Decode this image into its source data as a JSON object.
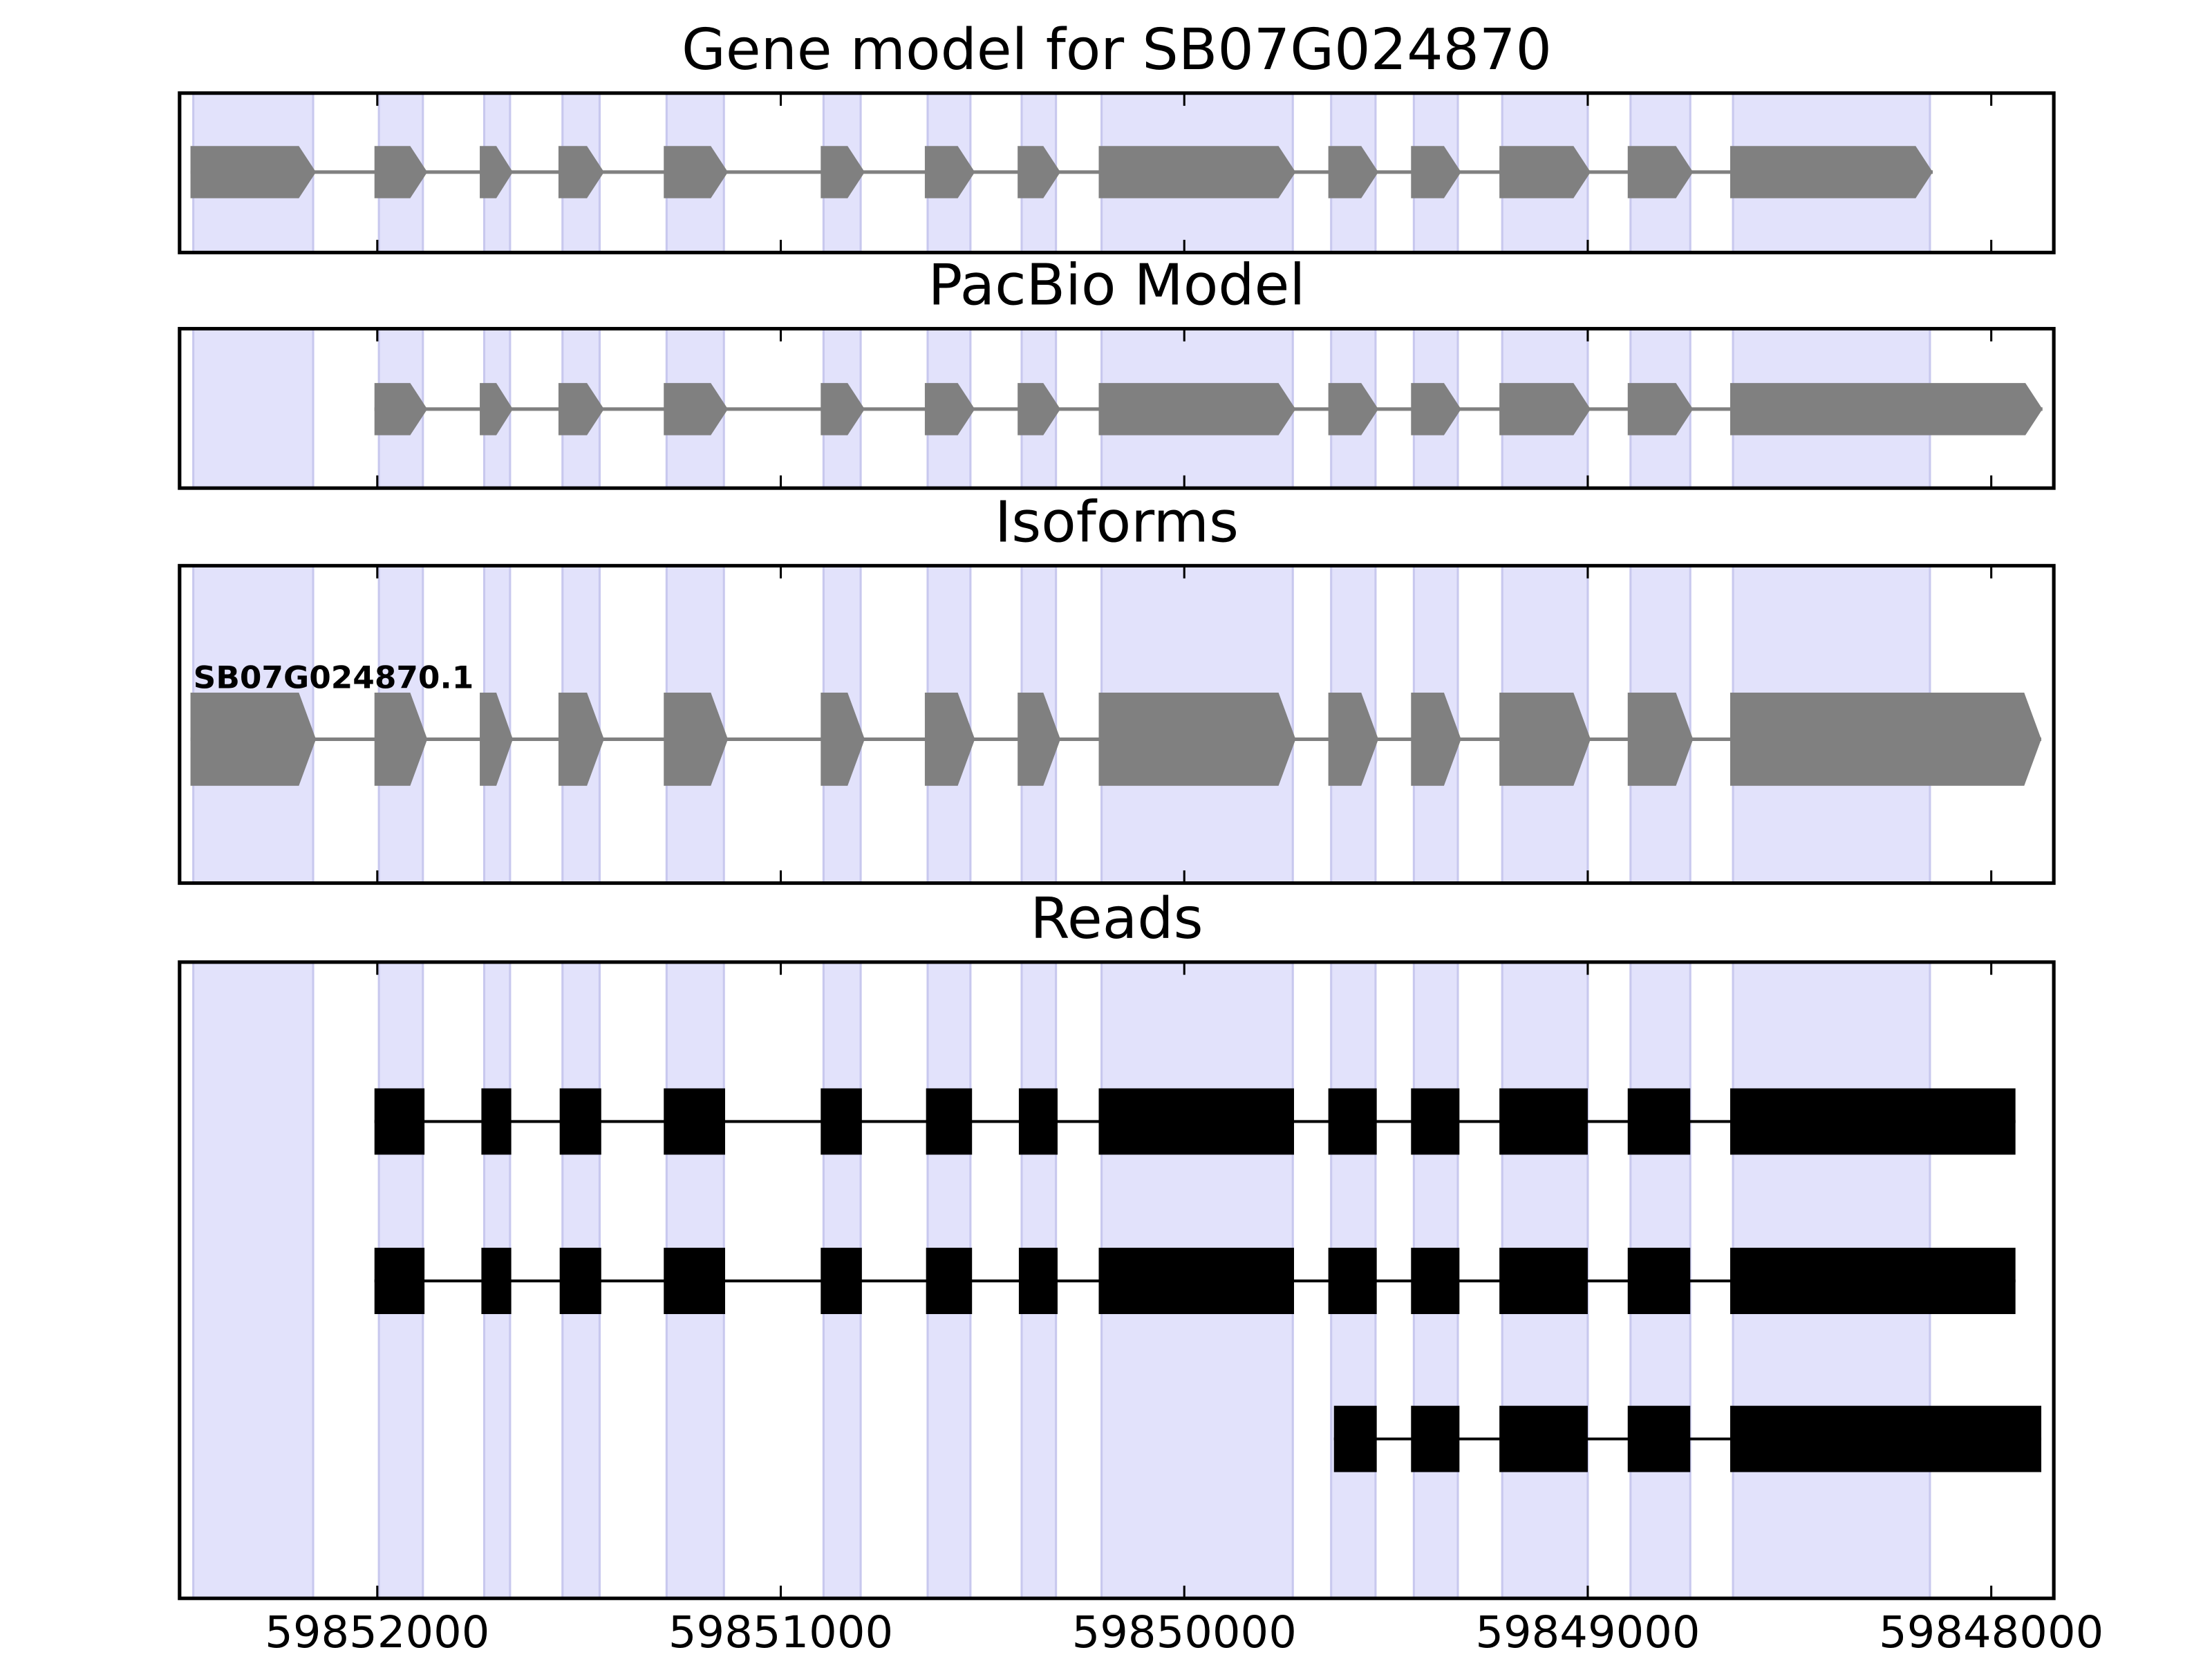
{
  "chart_data": {
    "type": "gene-tracks",
    "xlim": [
      59852490,
      59847845
    ],
    "xticks": [
      59852000,
      59851000,
      59850000,
      59849000,
      59848000
    ],
    "highlight_color": "#e2e2fb",
    "highlight_regions": [
      [
        59852456,
        59852159
      ],
      [
        59851996,
        59851887
      ],
      [
        59851735,
        59851671
      ],
      [
        59851541,
        59851449
      ],
      [
        59851283,
        59851141
      ],
      [
        59850894,
        59850802
      ],
      [
        59850636,
        59850530
      ],
      [
        59850403,
        59850318
      ],
      [
        59850205,
        59849731
      ],
      [
        59849636,
        59849526
      ],
      [
        59849431,
        59849322
      ],
      [
        59849212,
        59849000
      ],
      [
        59848894,
        59848746
      ],
      [
        59848640,
        59848152
      ]
    ],
    "tracks": [
      {
        "title": "Gene model for SB07G024870",
        "kind": "model",
        "color": "#808080",
        "features": [
          {
            "exons": [
              [
                59852463,
                59852152
              ],
              [
                59852007,
                59851876
              ],
              [
                59851746,
                59851664
              ],
              [
                59851551,
                59851438
              ],
              [
                59851290,
                59851131
              ],
              [
                59850901,
                59850792
              ],
              [
                59850643,
                59850519
              ],
              [
                59850413,
                59850307
              ],
              [
                59850212,
                59849724
              ],
              [
                59849643,
                59849519
              ],
              [
                59849438,
                59849314
              ],
              [
                59849219,
                59848993
              ],
              [
                59848901,
                59848739
              ],
              [
                59848647,
                59848145
              ]
            ]
          }
        ]
      },
      {
        "title": "PacBio Model",
        "kind": "model",
        "color": "#808080",
        "features": [
          {
            "exons": [
              [
                59852007,
                59851876
              ],
              [
                59851746,
                59851664
              ],
              [
                59851551,
                59851438
              ],
              [
                59851290,
                59851131
              ],
              [
                59850901,
                59850792
              ],
              [
                59850643,
                59850519
              ],
              [
                59850413,
                59850307
              ],
              [
                59850212,
                59849724
              ],
              [
                59849643,
                59849519
              ],
              [
                59849438,
                59849314
              ],
              [
                59849219,
                59848993
              ],
              [
                59848901,
                59848739
              ],
              [
                59848647,
                59847873
              ]
            ]
          }
        ]
      },
      {
        "title": "Isoforms",
        "kind": "model",
        "color": "#808080",
        "features": [
          {
            "name": "SB07G024870.1",
            "exons": [
              [
                59852463,
                59852152
              ],
              [
                59852007,
                59851876
              ],
              [
                59851746,
                59851664
              ],
              [
                59851551,
                59851438
              ],
              [
                59851290,
                59851131
              ],
              [
                59850901,
                59850792
              ],
              [
                59850643,
                59850519
              ],
              [
                59850413,
                59850307
              ],
              [
                59850212,
                59849724
              ],
              [
                59849643,
                59849519
              ],
              [
                59849438,
                59849314
              ],
              [
                59849219,
                59848993
              ],
              [
                59848901,
                59848739
              ],
              [
                59848647,
                59847876
              ]
            ]
          }
        ]
      },
      {
        "title": "Reads",
        "kind": "reads",
        "color": "#000000",
        "features": [
          {
            "exons": [
              [
                59852007,
                59851883
              ],
              [
                59851742,
                59851668
              ],
              [
                59851548,
                59851445
              ],
              [
                59851290,
                59851138
              ],
              [
                59850901,
                59850799
              ],
              [
                59850640,
                59850526
              ],
              [
                59850410,
                59850314
              ],
              [
                59850212,
                59849728
              ],
              [
                59849643,
                59849523
              ],
              [
                59849438,
                59849318
              ],
              [
                59849219,
                59849000
              ],
              [
                59848901,
                59848746
              ],
              [
                59848647,
                59847940
              ]
            ]
          },
          {
            "exons": [
              [
                59852007,
                59851883
              ],
              [
                59851742,
                59851668
              ],
              [
                59851548,
                59851445
              ],
              [
                59851290,
                59851138
              ],
              [
                59850901,
                59850799
              ],
              [
                59850640,
                59850526
              ],
              [
                59850410,
                59850314
              ],
              [
                59850212,
                59849728
              ],
              [
                59849643,
                59849523
              ],
              [
                59849438,
                59849318
              ],
              [
                59849219,
                59849000
              ],
              [
                59848901,
                59848746
              ],
              [
                59848647,
                59847940
              ]
            ]
          },
          {
            "exons": [
              [
                59849629,
                59849523
              ],
              [
                59849438,
                59849318
              ],
              [
                59849219,
                59849000
              ],
              [
                59848901,
                59848746
              ],
              [
                59848647,
                59847876
              ]
            ]
          }
        ]
      }
    ]
  }
}
